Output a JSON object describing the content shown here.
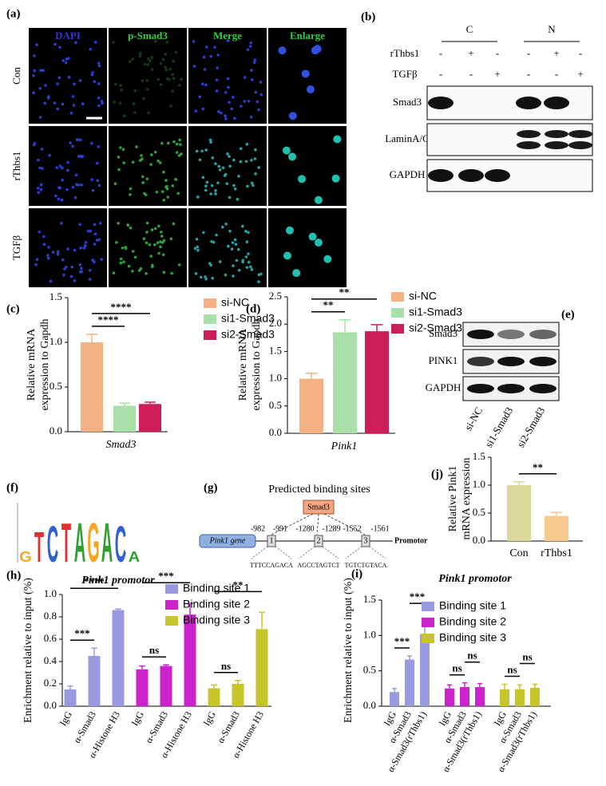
{
  "chart_data": [
    {
      "type": "bar",
      "label": "(c)",
      "ylabel": [
        "Relative mRNA",
        "expression to Gapdh"
      ],
      "categories": [
        "Smad3"
      ],
      "series": [
        {
          "name": "si-NC",
          "color": "#f4b183",
          "values": [
            1.0
          ],
          "errors": [
            0.09
          ]
        },
        {
          "name": "si1-Smad3",
          "color": "#a9dfa9",
          "values": [
            0.29
          ],
          "errors": [
            0.03
          ]
        },
        {
          "name": "si2-Smad3",
          "color": "#cc1f5a",
          "values": [
            0.31
          ],
          "errors": [
            0.02
          ]
        }
      ],
      "annotations": [
        {
          "text": "****",
          "between": [
            0,
            1
          ]
        },
        {
          "text": "****",
          "between": [
            0,
            2
          ]
        }
      ],
      "ylim": [
        0,
        1.5
      ],
      "yticks": [
        {
          "value": 0,
          "label": "0.0"
        },
        0.5,
        {
          "value": 1,
          "label": "1.0"
        },
        1.5
      ]
    },
    {
      "type": "bar",
      "label": "(d)",
      "ylabel": [
        "Relative mRNA",
        "expression to Gapdh"
      ],
      "categories": [
        "Pink1"
      ],
      "series": [
        {
          "name": "si-NC",
          "color": "#f4b183",
          "values": [
            1.0
          ],
          "errors": [
            0.1
          ]
        },
        {
          "name": "si1-Smad3",
          "color": "#a9dfa9",
          "values": [
            1.85
          ],
          "errors": [
            0.23
          ]
        },
        {
          "name": "si2-Smad3",
          "color": "#cc1f5a",
          "values": [
            1.87
          ],
          "errors": [
            0.12
          ]
        }
      ],
      "annotations": [
        {
          "text": "**",
          "between": [
            0,
            1
          ]
        },
        {
          "text": "**",
          "between": [
            0,
            2
          ]
        }
      ],
      "ylim": [
        0,
        2.5
      ],
      "yticks": [
        {
          "value": 0,
          "label": "0.0"
        },
        0.5,
        {
          "value": 1,
          "label": "1.0"
        },
        1.5,
        {
          "value": 2,
          "label": "2.0"
        },
        2.5
      ]
    },
    {
      "type": "bar",
      "label": "(j)",
      "ylabel": [
        "Relative Pink1",
        "mRNA expression"
      ],
      "categories": [
        "Con",
        "rThbs1"
      ],
      "values": [
        1.0,
        0.45
      ],
      "errors": [
        0.06,
        0.06
      ],
      "colors": [
        "#d9d99c",
        "#f8c98f"
      ],
      "annotations": [
        {
          "text": "**",
          "between": [
            0,
            1
          ]
        }
      ],
      "ylim": [
        0,
        1.5
      ],
      "yticks": [
        {
          "value": 0,
          "label": "0.0"
        },
        0.5,
        {
          "value": 1,
          "label": "1.0"
        },
        1.5
      ]
    },
    {
      "type": "bar",
      "label": "(h)",
      "title": "Pink1 promotor",
      "ylabel": "Enrichment relative to input (%)",
      "categories": [
        "IgG",
        "α-Smad3",
        "α-Histone H3"
      ],
      "series": [
        {
          "name": "Binding site 1",
          "color": "#9a9ae0",
          "values": [
            0.15,
            0.45,
            0.86
          ],
          "errors": [
            0.03,
            0.07,
            0.01
          ],
          "annotations": [
            {
              "text": "***",
              "between": [
                0,
                1
              ]
            },
            {
              "text": "****",
              "between": [
                0,
                2
              ]
            }
          ]
        },
        {
          "name": "Binding site 2",
          "color": "#cc22cc",
          "values": [
            0.33,
            0.36,
            0.82
          ],
          "errors": [
            0.03,
            0.01,
            0.1
          ],
          "annotations": [
            {
              "text": "ns",
              "between": [
                0,
                1
              ]
            },
            {
              "text": "***",
              "between": [
                0,
                2
              ]
            }
          ]
        },
        {
          "name": "Binding site 3",
          "color": "#c6c62a",
          "values": [
            0.16,
            0.2,
            0.69
          ],
          "errors": [
            0.03,
            0.03,
            0.15
          ],
          "annotations": [
            {
              "text": "ns",
              "between": [
                0,
                1
              ]
            },
            {
              "text": "**",
              "between": [
                0,
                2
              ]
            }
          ]
        }
      ],
      "ylim": [
        0,
        1.0
      ],
      "yticks": [
        {
          "value": 0,
          "label": "0.0"
        },
        0.2,
        0.4,
        0.6,
        0.8,
        {
          "value": 1,
          "label": "1.0"
        }
      ]
    },
    {
      "type": "bar",
      "label": "(i)",
      "title": "Pink1 promotor",
      "ylabel": "Enrichment relative to input (%)",
      "categories": [
        "IgG",
        "α-Smad3",
        "α-Smad3(rThbs1)"
      ],
      "series": [
        {
          "name": "Binding site 1",
          "color": "#9a9ae0",
          "values": [
            0.2,
            0.66,
            1.02
          ],
          "errors": [
            0.05,
            0.05,
            0.14
          ],
          "annotations": [
            {
              "text": "***",
              "between": [
                0,
                1
              ]
            },
            {
              "text": "***",
              "between": [
                1,
                2
              ]
            }
          ]
        },
        {
          "name": "Binding site 2",
          "color": "#cc22cc",
          "values": [
            0.25,
            0.27,
            0.27
          ],
          "errors": [
            0.05,
            0.06,
            0.05
          ],
          "annotations": [
            {
              "text": "ns",
              "between": [
                0,
                1
              ]
            },
            {
              "text": "ns",
              "between": [
                1,
                2
              ]
            }
          ]
        },
        {
          "name": "Binding site 3",
          "color": "#c6c62a",
          "values": [
            0.24,
            0.24,
            0.26
          ],
          "errors": [
            0.07,
            0.06,
            0.05
          ],
          "annotations": [
            {
              "text": "ns",
              "between": [
                0,
                1
              ]
            },
            {
              "text": "ns",
              "between": [
                1,
                2
              ]
            }
          ]
        }
      ],
      "ylim": [
        0,
        1.5
      ],
      "yticks": [
        {
          "value": 0,
          "label": "0.0"
        },
        0.5,
        {
          "value": 1,
          "label": "1.0"
        },
        1.5
      ]
    }
  ],
  "figure": {
    "a": {
      "label": "(a)",
      "columns": [
        "DAPI",
        "p-Smad3",
        "Merge",
        "Enlarge"
      ],
      "rows": [
        "Con",
        "rThbs1",
        "TGFβ"
      ]
    },
    "b": {
      "label": "(b)",
      "groups": [
        "C",
        "N"
      ],
      "conditions": [
        "rThbs1",
        "TGFβ"
      ],
      "signs": [
        [
          "-",
          "+",
          "-",
          "-",
          "+",
          "-"
        ],
        [
          "-",
          "-",
          "+",
          "-",
          "-",
          "+"
        ]
      ],
      "blots": [
        "Smad3",
        "LaminA/C",
        "GAPDH"
      ]
    },
    "e": {
      "label": "(e)",
      "blots": [
        "Smad3",
        "PINK1",
        "GAPDH"
      ],
      "lanes": [
        "si-NC",
        "si1-Smad3",
        "si2-Smad3"
      ]
    },
    "f": {
      "label": "(f)",
      "motif": [
        "G",
        "T",
        "C",
        "T",
        "A",
        "G",
        "A",
        "C",
        "A"
      ]
    },
    "g": {
      "label": "(g)",
      "title": "Predicted binding sites",
      "factor": "Smad3",
      "gene": "Pink1 gene",
      "promoter": "Promotor",
      "sites": [
        {
          "number": "1",
          "start": "-982",
          "end": "-991",
          "sequence": "TTTCCAGACA"
        },
        {
          "number": "2",
          "start": "-1280",
          "end": "-1289",
          "sequence": "AGCCTAGTCT"
        },
        {
          "number": "3",
          "start": "-1552",
          "end": "-1561",
          "sequence": "TGTCTGTACA"
        }
      ]
    }
  }
}
